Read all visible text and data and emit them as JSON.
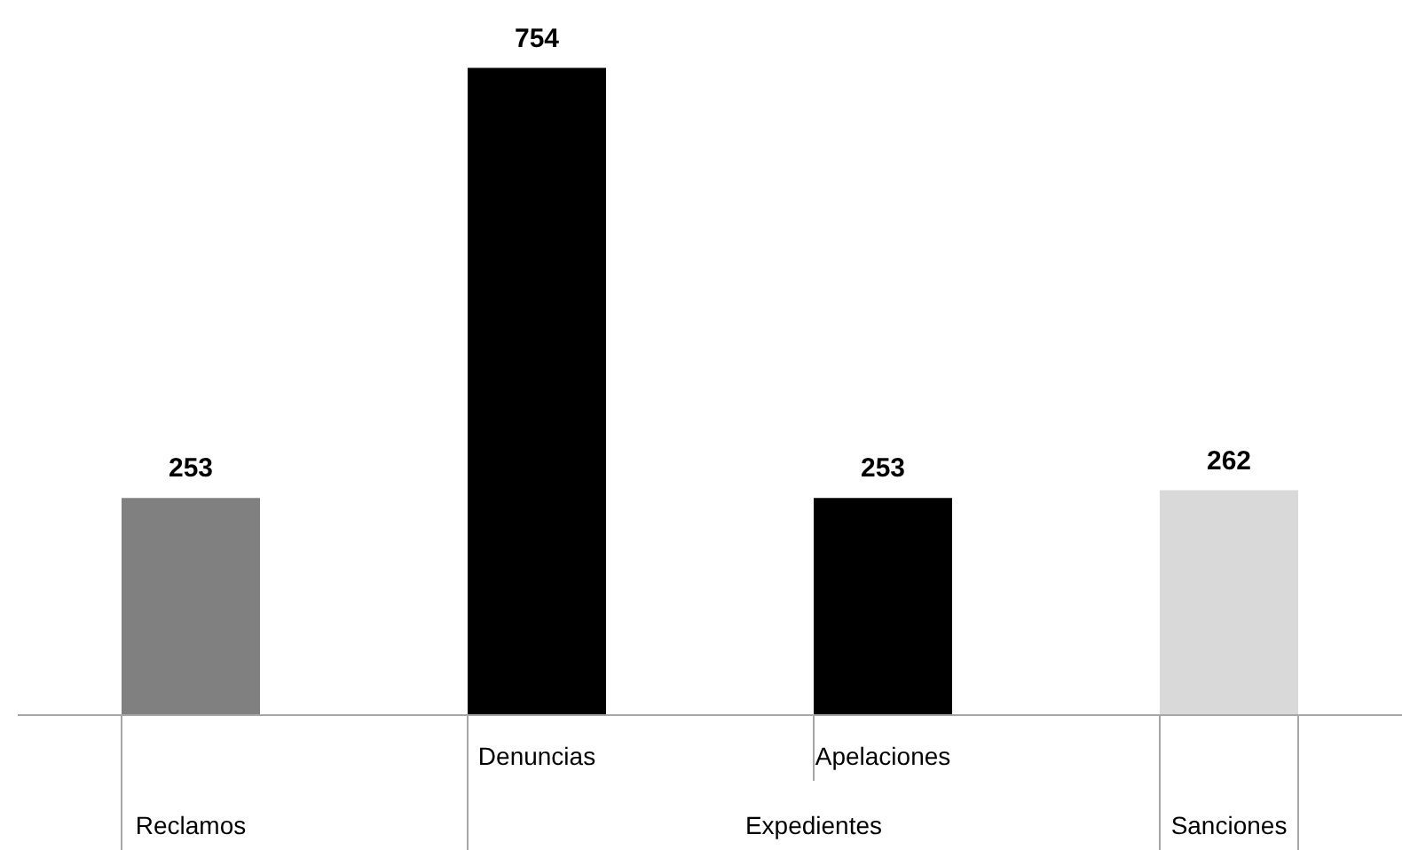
{
  "chart_data": {
    "type": "bar",
    "categories": [
      "Reclamos",
      "Denuncias",
      "Apelaciones",
      "Sanciones"
    ],
    "values": [
      253,
      754,
      253,
      262
    ],
    "colors": [
      "#808080",
      "#000000",
      "#000000",
      "#d9d9d9"
    ],
    "data_labels": true,
    "annotations": [
      "Expedientes"
    ]
  }
}
